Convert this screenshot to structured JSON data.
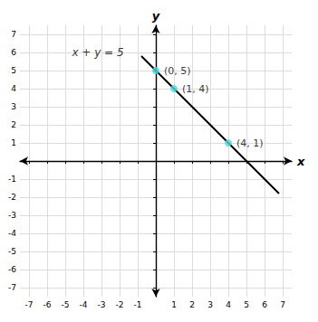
{
  "chart_data": {
    "type": "scatter",
    "xlabel": "x",
    "ylabel": "y",
    "xlim": [
      -7.5,
      7.5
    ],
    "ylim": [
      -7.5,
      7.5
    ],
    "xticks": [
      -7,
      -6,
      -5,
      -4,
      -3,
      -2,
      -1,
      1,
      2,
      3,
      4,
      5,
      6,
      7
    ],
    "yticks": [
      -7,
      -6,
      -5,
      -4,
      -3,
      -2,
      -1,
      1,
      2,
      3,
      4,
      5,
      6,
      7
    ],
    "grid": true,
    "series": [
      {
        "type": "line",
        "color": "#000000",
        "x": [
          -0.8,
          6.8
        ],
        "values": [
          5.8,
          -1.8
        ]
      },
      {
        "type": "scatter",
        "color": "#4DD9D9",
        "x": [
          0,
          1,
          4
        ],
        "values": [
          5,
          4,
          1
        ],
        "data_labels": true,
        "value_labels": [
          "(0, 5)",
          "(1, 4)",
          "(4, 1)"
        ]
      }
    ],
    "annotations": [
      {
        "text": "x + y = 5",
        "x": -3.2,
        "y": 6.0
      }
    ]
  }
}
